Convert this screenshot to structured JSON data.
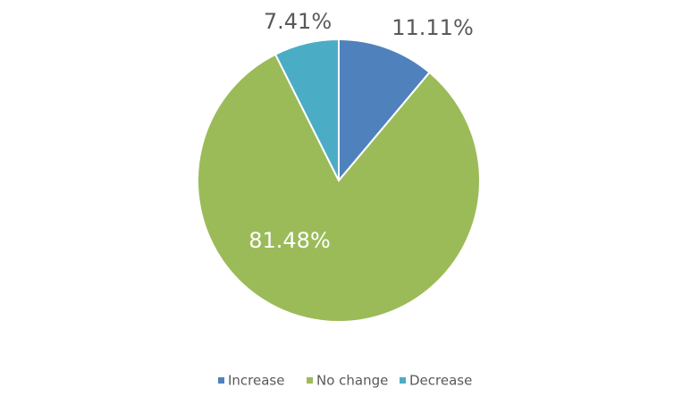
{
  "chart_data": {
    "type": "pie",
    "categories": [
      "Increase",
      "No change",
      "Decrease"
    ],
    "values": [
      11.11,
      81.48,
      7.41
    ],
    "value_labels": [
      "11.11%",
      "81.48%",
      "7.41%"
    ],
    "colors": [
      "#4f81bd",
      "#9bbb59",
      "#4bacc6"
    ],
    "legend": "bottom"
  }
}
